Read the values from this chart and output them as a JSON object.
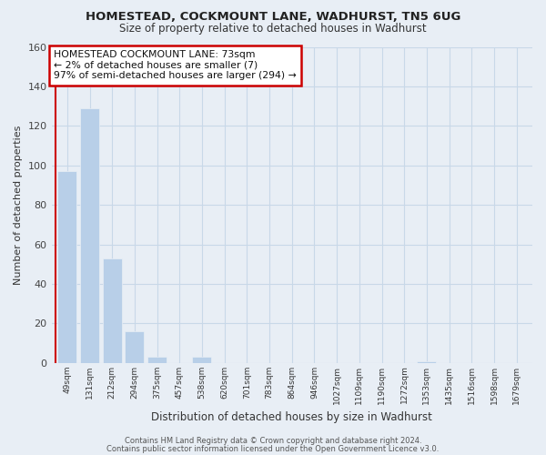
{
  "title": "HOMESTEAD, COCKMOUNT LANE, WADHURST, TN5 6UG",
  "subtitle": "Size of property relative to detached houses in Wadhurst",
  "xlabel": "Distribution of detached houses by size in Wadhurst",
  "ylabel": "Number of detached properties",
  "bar_values": [
    97,
    129,
    53,
    16,
    3,
    0,
    3,
    0,
    0,
    0,
    0,
    0,
    0,
    0,
    0,
    0,
    1,
    0,
    0,
    0,
    0
  ],
  "bar_labels": [
    "49sqm",
    "131sqm",
    "212sqm",
    "294sqm",
    "375sqm",
    "457sqm",
    "538sqm",
    "620sqm",
    "701sqm",
    "783sqm",
    "864sqm",
    "946sqm",
    "1027sqm",
    "1109sqm",
    "1190sqm",
    "1272sqm",
    "1353sqm",
    "1435sqm",
    "1516sqm",
    "1598sqm",
    "1679sqm"
  ],
  "bar_color": "#b8cfe8",
  "highlight_color": "#cc0000",
  "ylim": [
    0,
    160
  ],
  "yticks": [
    0,
    20,
    40,
    60,
    80,
    100,
    120,
    140,
    160
  ],
  "annotation_title": "HOMESTEAD COCKMOUNT LANE: 73sqm",
  "annotation_line1": "← 2% of detached houses are smaller (7)",
  "annotation_line2": "97% of semi-detached houses are larger (294) →",
  "footer_line1": "Contains HM Land Registry data © Crown copyright and database right 2024.",
  "footer_line2": "Contains public sector information licensed under the Open Government Licence v3.0.",
  "grid_color": "#c8d8e8",
  "background_color": "#e8eef5",
  "redline_x_label": "49sqm"
}
